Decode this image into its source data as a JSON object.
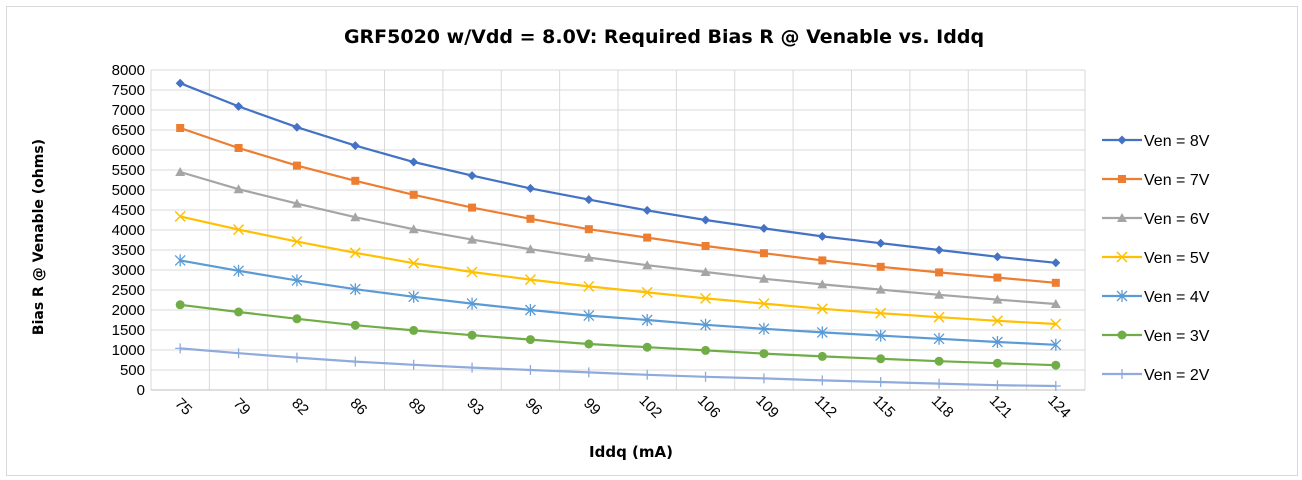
{
  "chart_data": {
    "type": "line",
    "title": "GRF5020 w/Vdd = 8.0V:  Required Bias R @ Venable vs. Iddq",
    "xlabel": "Iddq (mA)",
    "ylabel": "Bias R @ Venable (ohms)",
    "categories": [
      "75",
      "79",
      "82",
      "86",
      "89",
      "93",
      "96",
      "99",
      "102",
      "106",
      "109",
      "112",
      "115",
      "118",
      "121",
      "124"
    ],
    "ylim": [
      0,
      8000
    ],
    "yticks": [
      "0",
      "500",
      "1000",
      "1500",
      "2000",
      "2500",
      "3000",
      "3500",
      "4000",
      "4500",
      "5000",
      "5500",
      "6000",
      "6500",
      "7000",
      "7500",
      "8000"
    ],
    "grid": true,
    "legend_position": "right",
    "series": [
      {
        "name": "Ven = 8V",
        "color": "#4472C4",
        "marker": "diamond",
        "values": [
          7670,
          7090,
          6570,
          6110,
          5700,
          5360,
          5040,
          4760,
          4490,
          4250,
          4040,
          3840,
          3670,
          3500,
          3330,
          3180
        ]
      },
      {
        "name": "Ven = 7V",
        "color": "#ED7D31",
        "marker": "square",
        "values": [
          6550,
          6050,
          5610,
          5230,
          4880,
          4560,
          4280,
          4020,
          3810,
          3600,
          3420,
          3240,
          3080,
          2940,
          2810,
          2680
        ]
      },
      {
        "name": "Ven = 6V",
        "color": "#A5A5A5",
        "marker": "triangle",
        "values": [
          5450,
          5020,
          4660,
          4320,
          4020,
          3760,
          3520,
          3310,
          3120,
          2950,
          2780,
          2640,
          2510,
          2380,
          2260,
          2150
        ]
      },
      {
        "name": "Ven = 5V",
        "color": "#FFC000",
        "marker": "x",
        "values": [
          4340,
          4010,
          3710,
          3430,
          3170,
          2950,
          2760,
          2590,
          2440,
          2290,
          2160,
          2030,
          1920,
          1820,
          1730,
          1650
        ]
      },
      {
        "name": "Ven = 4V",
        "color": "#5B9BD5",
        "marker": "star",
        "values": [
          3240,
          2980,
          2740,
          2520,
          2330,
          2160,
          2000,
          1860,
          1750,
          1630,
          1530,
          1440,
          1360,
          1280,
          1200,
          1130
        ]
      },
      {
        "name": "Ven = 3V",
        "color": "#70AD47",
        "marker": "circle",
        "values": [
          2130,
          1950,
          1780,
          1620,
          1490,
          1370,
          1260,
          1150,
          1070,
          990,
          910,
          840,
          780,
          720,
          670,
          620
        ]
      },
      {
        "name": "Ven = 2V",
        "color": "#8FAADC",
        "marker": "plus",
        "values": [
          1040,
          920,
          810,
          710,
          630,
          560,
          500,
          440,
          380,
          330,
          290,
          240,
          200,
          160,
          120,
          100
        ]
      }
    ]
  }
}
